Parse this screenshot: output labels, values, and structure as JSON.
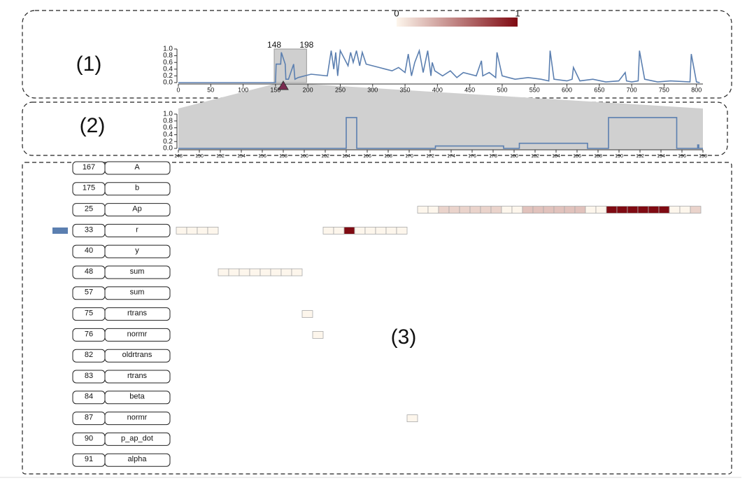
{
  "chart_data": [
    {
      "type": "line",
      "panel_label": "(1)",
      "color": "#5b7fb0",
      "x": [
        0,
        150,
        151,
        158,
        159,
        165,
        166,
        170,
        178,
        180,
        185,
        195,
        205,
        230,
        236,
        240,
        243,
        246,
        250,
        262,
        266,
        270,
        275,
        280,
        284,
        290,
        300,
        310,
        320,
        330,
        340,
        350,
        355,
        360,
        365,
        372,
        378,
        385,
        390,
        392,
        396,
        400,
        408,
        420,
        430,
        440,
        460,
        468,
        470,
        480,
        490,
        492,
        500,
        510,
        520,
        540,
        560,
        572,
        574,
        580,
        600,
        608,
        610,
        620,
        640,
        660,
        680,
        690,
        692,
        700,
        710,
        712,
        720,
        740,
        760,
        790,
        792,
        800,
        805
      ],
      "values": [
        0,
        0,
        0.55,
        0.55,
        0.9,
        0.55,
        0.1,
        0.1,
        0.55,
        0.1,
        0.15,
        0.2,
        0.25,
        0.2,
        0.95,
        0.4,
        0.9,
        0.2,
        0.95,
        0.5,
        0.9,
        0.6,
        0.95,
        0.5,
        0.9,
        0.55,
        0.5,
        0.45,
        0.4,
        0.35,
        0.45,
        0.3,
        0.85,
        0.2,
        0.6,
        0.95,
        0.3,
        0.95,
        0.2,
        0.6,
        0.35,
        0.3,
        0.2,
        0.35,
        0.15,
        0.3,
        0.2,
        0.65,
        0.2,
        0.3,
        0.15,
        0.9,
        0.2,
        0.15,
        0.1,
        0.15,
        0.1,
        0.05,
        0.95,
        0.1,
        0.05,
        0.1,
        0.45,
        0.05,
        0.1,
        0.02,
        0.05,
        0.3,
        0.05,
        0.02,
        0.05,
        0.95,
        0.1,
        0.02,
        0.05,
        0.02,
        0.85,
        0.02,
        0
      ],
      "xlim": [
        0,
        810
      ],
      "xticks": [
        0,
        50,
        100,
        150,
        200,
        250,
        300,
        350,
        400,
        450,
        500,
        550,
        600,
        650,
        700,
        750,
        800
      ],
      "ylim": [
        0,
        1
      ],
      "yticks": [
        {
          "value": 0,
          "label": "0.0"
        },
        0.2,
        0.4,
        0.6,
        0.8,
        {
          "value": 1,
          "label": "1.0"
        }
      ],
      "brush": [
        148,
        198
      ],
      "colorbar": {
        "ticks": [
          0,
          1
        ],
        "colors": [
          "#fdf6ec",
          "#7f0a12"
        ]
      }
    },
    {
      "type": "line",
      "panel_label": "(2)",
      "color": "#5b7fb0",
      "x": [
        148,
        164,
        164,
        165,
        165,
        172.5,
        172.5,
        179,
        179,
        180.5,
        180.5,
        187,
        187,
        189,
        189,
        195.5,
        195.5,
        197.5,
        197.5,
        197.6,
        197.6,
        198
      ],
      "values": [
        0,
        0,
        0.9,
        0.9,
        0,
        0,
        0.07,
        0.07,
        0,
        0,
        0.15,
        0.15,
        0,
        0,
        0.9,
        0.9,
        0,
        0,
        0.1,
        0.1,
        0,
        0
      ],
      "xlim": [
        148,
        198
      ],
      "xticks": [
        148,
        150,
        152,
        154,
        156,
        158,
        160,
        162,
        164,
        166,
        168,
        170,
        172,
        174,
        176,
        178,
        180,
        182,
        184,
        186,
        188,
        190,
        192,
        194,
        196,
        198
      ],
      "ylim": [
        0,
        1
      ],
      "yticks": [
        {
          "value": 0,
          "label": "0.0"
        },
        0.2,
        0.4,
        0.6,
        0.8,
        {
          "value": 1,
          "label": "1.0"
        }
      ]
    },
    {
      "type": "heatmap",
      "panel_label": "(3)",
      "rows": [
        {
          "id": "167",
          "name": "A",
          "x": [],
          "values": []
        },
        {
          "id": "175",
          "name": "b",
          "x": [],
          "values": []
        },
        {
          "id": "25",
          "name": "Ap",
          "x": [
            171,
            172,
            173,
            174,
            175,
            176,
            177,
            178,
            179,
            180,
            181,
            182,
            183,
            184,
            185,
            186,
            187,
            188,
            189,
            190,
            191,
            192,
            193,
            194,
            195,
            196,
            197
          ],
          "values": [
            0,
            0,
            0.15,
            0.15,
            0.15,
            0.15,
            0.15,
            0.15,
            0,
            0,
            0.22,
            0.22,
            0.22,
            0.22,
            0.22,
            0.22,
            0,
            0,
            1,
            1,
            1,
            1,
            1,
            1,
            0,
            0,
            0.15
          ]
        },
        {
          "id": "33",
          "name": "r",
          "x": [
            148,
            149,
            150,
            151,
            162,
            163,
            164,
            165,
            166,
            167,
            168,
            169
          ],
          "values": [
            0,
            0,
            0,
            0,
            0,
            0,
            1,
            0,
            0,
            0,
            0,
            0
          ]
        },
        {
          "id": "40",
          "name": "y",
          "x": [],
          "values": []
        },
        {
          "id": "48",
          "name": "sum",
          "x": [
            152,
            153,
            154,
            155,
            156,
            157,
            158,
            159
          ],
          "values": [
            0,
            0,
            0,
            0,
            0,
            0,
            0,
            0
          ]
        },
        {
          "id": "57",
          "name": "sum",
          "x": [],
          "values": []
        },
        {
          "id": "75",
          "name": "rtrans",
          "x": [
            160
          ],
          "values": [
            0
          ]
        },
        {
          "id": "76",
          "name": "normr",
          "x": [
            161
          ],
          "values": [
            0
          ]
        },
        {
          "id": "82",
          "name": "oldrtrans",
          "x": [],
          "values": []
        },
        {
          "id": "83",
          "name": "rtrans",
          "x": [],
          "values": []
        },
        {
          "id": "84",
          "name": "beta",
          "x": [],
          "values": []
        },
        {
          "id": "87",
          "name": "normr",
          "x": [
            170
          ],
          "values": [
            0
          ]
        },
        {
          "id": "90",
          "name": "p_ap_dot",
          "x": [],
          "values": []
        },
        {
          "id": "91",
          "name": "alpha",
          "x": [],
          "values": []
        }
      ]
    }
  ]
}
